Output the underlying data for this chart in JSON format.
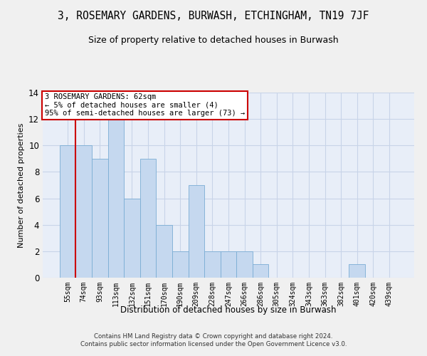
{
  "title": "3, ROSEMARY GARDENS, BURWASH, ETCHINGHAM, TN19 7JF",
  "subtitle": "Size of property relative to detached houses in Burwash",
  "xlabel": "Distribution of detached houses by size in Burwash",
  "ylabel": "Number of detached properties",
  "categories": [
    "55sqm",
    "74sqm",
    "93sqm",
    "113sqm",
    "132sqm",
    "151sqm",
    "170sqm",
    "190sqm",
    "209sqm",
    "228sqm",
    "247sqm",
    "266sqm",
    "286sqm",
    "305sqm",
    "324sqm",
    "343sqm",
    "363sqm",
    "382sqm",
    "401sqm",
    "420sqm",
    "439sqm"
  ],
  "values": [
    10,
    10,
    9,
    12,
    6,
    9,
    4,
    2,
    7,
    2,
    2,
    2,
    1,
    0,
    0,
    0,
    0,
    0,
    1,
    0,
    0
  ],
  "bar_color": "#c5d8ef",
  "bar_edge_color": "#7aadd4",
  "annotation_box_color": "#ffffff",
  "annotation_border_color": "#cc0000",
  "annotation_line1": "3 ROSEMARY GARDENS: 62sqm",
  "annotation_line2": "← 5% of detached houses are smaller (4)",
  "annotation_line3": "95% of semi-detached houses are larger (73) →",
  "marker_line_color": "#cc0000",
  "marker_bin_index": 1,
  "ylim": [
    0,
    14
  ],
  "yticks": [
    0,
    2,
    4,
    6,
    8,
    10,
    12,
    14
  ],
  "grid_color": "#c8d4e8",
  "bg_color": "#e8eef8",
  "fig_color": "#f0f0f0",
  "footer_line1": "Contains HM Land Registry data © Crown copyright and database right 2024.",
  "footer_line2": "Contains public sector information licensed under the Open Government Licence v3.0."
}
